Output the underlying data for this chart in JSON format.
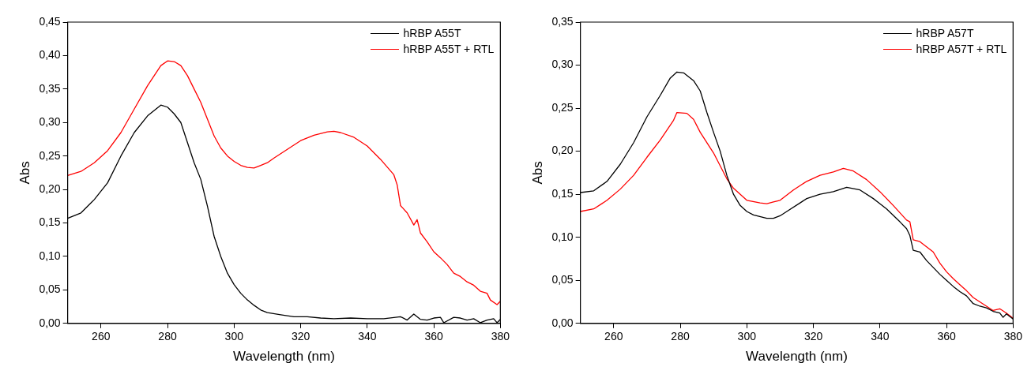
{
  "chart_data": [
    {
      "type": "line",
      "xlabel": "Wavelength (nm)",
      "ylabel": "Abs",
      "xlim": [
        250,
        380
      ],
      "xticks": [
        260,
        280,
        300,
        320,
        340,
        360,
        380
      ],
      "ylim": [
        0,
        0.45
      ],
      "yticks": [
        {
          "value": 0,
          "label": "0,00"
        },
        {
          "value": 0.05,
          "label": "0,05"
        },
        {
          "value": 0.1,
          "label": "0,10"
        },
        {
          "value": 0.15,
          "label": "0,15"
        },
        {
          "value": 0.2,
          "label": "0,20"
        },
        {
          "value": 0.25,
          "label": "0,25"
        },
        {
          "value": 0.3,
          "label": "0,30"
        },
        {
          "value": 0.35,
          "label": "0,35"
        },
        {
          "value": 0.4,
          "label": "0,40"
        },
        {
          "value": 0.45,
          "label": "0,45"
        }
      ],
      "grid": false,
      "legend": "top right",
      "marker": "none",
      "line_style": "solid",
      "series": [
        {
          "name": "hRBP A55T",
          "color": "#000000",
          "x": [
            250,
            254,
            258,
            262,
            266,
            270,
            274,
            276,
            278,
            280,
            282,
            284,
            286,
            288,
            290,
            292,
            294,
            296,
            298,
            300,
            302,
            304,
            306,
            308,
            310,
            314,
            318,
            322,
            326,
            330,
            335,
            340,
            345,
            350,
            352,
            354,
            356,
            358,
            360,
            362,
            363,
            366,
            368,
            370,
            372,
            374,
            376,
            378,
            379,
            380
          ],
          "values": [
            0.157,
            0.165,
            0.185,
            0.21,
            0.25,
            0.285,
            0.31,
            0.318,
            0.326,
            0.323,
            0.313,
            0.3,
            0.27,
            0.24,
            0.215,
            0.175,
            0.13,
            0.1,
            0.075,
            0.058,
            0.045,
            0.035,
            0.027,
            0.02,
            0.016,
            0.013,
            0.01,
            0.01,
            0.008,
            0.007,
            0.008,
            0.007,
            0.007,
            0.01,
            0.005,
            0.014,
            0.006,
            0.005,
            0.008,
            0.009,
            0.001,
            0.009,
            0.008,
            0.005,
            0.007,
            0.001,
            0.005,
            0.007,
            0.001,
            0.006
          ]
        },
        {
          "name": "hRBP A55T + RTL",
          "color": "#ff0000",
          "x": [
            250,
            254,
            258,
            262,
            266,
            270,
            274,
            278,
            280,
            282,
            284,
            286,
            288,
            290,
            292,
            294,
            296,
            298,
            300,
            302,
            304,
            306,
            308,
            310,
            312,
            316,
            320,
            324,
            328,
            330,
            332,
            336,
            340,
            344,
            348,
            349,
            350,
            352,
            354,
            355,
            356,
            358,
            360,
            362,
            364,
            366,
            368,
            370,
            372,
            374,
            376,
            377,
            379,
            380
          ],
          "values": [
            0.221,
            0.227,
            0.24,
            0.258,
            0.285,
            0.32,
            0.355,
            0.385,
            0.392,
            0.391,
            0.385,
            0.37,
            0.35,
            0.33,
            0.305,
            0.28,
            0.262,
            0.25,
            0.242,
            0.236,
            0.233,
            0.232,
            0.236,
            0.24,
            0.247,
            0.26,
            0.273,
            0.281,
            0.286,
            0.287,
            0.285,
            0.278,
            0.265,
            0.245,
            0.222,
            0.207,
            0.176,
            0.165,
            0.147,
            0.155,
            0.135,
            0.122,
            0.107,
            0.098,
            0.088,
            0.075,
            0.07,
            0.062,
            0.057,
            0.048,
            0.045,
            0.035,
            0.028,
            0.033
          ]
        }
      ]
    },
    {
      "type": "line",
      "xlabel": "Wavelength (nm)",
      "ylabel": "Abs",
      "xlim": [
        250,
        380
      ],
      "xticks": [
        260,
        280,
        300,
        320,
        340,
        360,
        380
      ],
      "ylim": [
        0,
        0.35
      ],
      "yticks": [
        {
          "value": 0,
          "label": "0,00"
        },
        {
          "value": 0.05,
          "label": "0,05"
        },
        {
          "value": 0.1,
          "label": "0,10"
        },
        {
          "value": 0.15,
          "label": "0,15"
        },
        {
          "value": 0.2,
          "label": "0,20"
        },
        {
          "value": 0.25,
          "label": "0,25"
        },
        {
          "value": 0.3,
          "label": "0,30"
        },
        {
          "value": 0.35,
          "label": "0,35"
        }
      ],
      "grid": false,
      "legend": "top right",
      "marker": "none",
      "line_style": "solid",
      "series": [
        {
          "name": "hRBP A57T",
          "color": "#000000",
          "x": [
            250,
            254,
            258,
            262,
            266,
            270,
            274,
            277,
            279,
            281,
            284,
            286,
            288,
            290,
            292,
            294,
            296,
            298,
            300,
            302,
            306,
            308,
            310,
            312,
            316,
            318,
            322,
            326,
            330,
            334,
            338,
            342,
            346,
            348,
            349,
            350,
            352,
            354,
            356,
            358,
            360,
            362,
            364,
            366,
            368,
            370,
            372,
            374,
            376,
            377,
            378,
            380
          ],
          "values": [
            0.152,
            0.154,
            0.165,
            0.185,
            0.21,
            0.24,
            0.265,
            0.285,
            0.292,
            0.291,
            0.282,
            0.27,
            0.245,
            0.222,
            0.2,
            0.172,
            0.15,
            0.137,
            0.13,
            0.126,
            0.122,
            0.122,
            0.125,
            0.13,
            0.14,
            0.145,
            0.15,
            0.153,
            0.158,
            0.155,
            0.145,
            0.133,
            0.118,
            0.11,
            0.102,
            0.085,
            0.083,
            0.073,
            0.065,
            0.057,
            0.05,
            0.043,
            0.037,
            0.032,
            0.023,
            0.02,
            0.018,
            0.014,
            0.012,
            0.007,
            0.011,
            0.005
          ]
        },
        {
          "name": "hRBP A57T + RTL",
          "color": "#ff0000",
          "x": [
            250,
            254,
            258,
            262,
            266,
            270,
            274,
            278,
            279,
            282,
            284,
            286,
            290,
            294,
            296,
            300,
            304,
            306,
            308,
            310,
            314,
            318,
            322,
            326,
            329,
            332,
            336,
            340,
            344,
            348,
            349,
            350,
            352,
            356,
            358,
            360,
            362,
            364,
            366,
            368,
            370,
            372,
            374,
            376,
            378,
            380
          ],
          "values": [
            0.13,
            0.133,
            0.143,
            0.156,
            0.172,
            0.193,
            0.213,
            0.236,
            0.245,
            0.244,
            0.237,
            0.222,
            0.198,
            0.168,
            0.157,
            0.143,
            0.14,
            0.139,
            0.141,
            0.143,
            0.155,
            0.165,
            0.172,
            0.176,
            0.18,
            0.177,
            0.167,
            0.153,
            0.137,
            0.12,
            0.118,
            0.097,
            0.095,
            0.083,
            0.07,
            0.06,
            0.052,
            0.045,
            0.038,
            0.03,
            0.025,
            0.02,
            0.015,
            0.017,
            0.012,
            0.006
          ]
        }
      ]
    }
  ]
}
